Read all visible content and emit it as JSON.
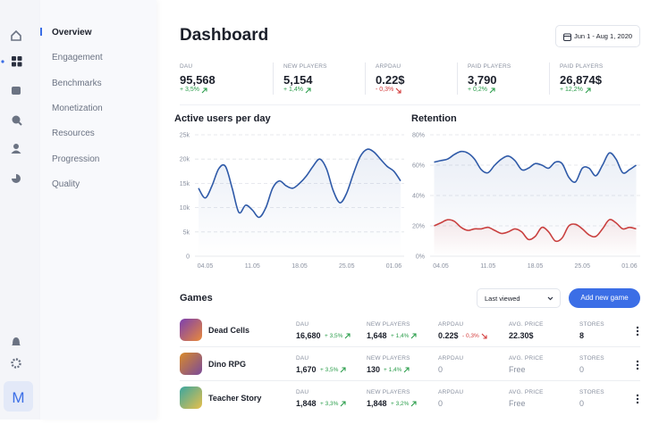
{
  "sidebar": {
    "logo": "M",
    "nav": [
      "Overview",
      "Engagement",
      "Benchmarks",
      "Monetization",
      "Resources",
      "Progression",
      "Quality"
    ]
  },
  "header": {
    "title": "Dashboard",
    "date_range": "Jun 1 - Aug 1, 2020"
  },
  "kpis": [
    {
      "label": "DAU",
      "value": "95,568",
      "change": "+ 3,5%"
    },
    {
      "label": "NEW PLAYERS",
      "value": "5,154",
      "change": "+ 1,4%"
    },
    {
      "label": "ARPDAU",
      "value": "0.22$",
      "change": "- 0,3%"
    },
    {
      "label": "PAID PLAYERS",
      "value": "3,790",
      "change": "+ 0,2%"
    },
    {
      "label": "PAID PLAYERS",
      "value": "26,874$",
      "change": "+ 12,2%"
    }
  ],
  "charts": [
    {
      "type": "line",
      "title": "Active users per day",
      "categories": [
        null,
        "04.05",
        null,
        null,
        null,
        null,
        null,
        null,
        "11.05",
        null,
        null,
        null,
        null,
        null,
        null,
        "18.05",
        null,
        null,
        null,
        null,
        null,
        null,
        "25.05",
        null,
        null,
        null,
        null,
        null,
        null,
        "01.06",
        null
      ],
      "ylim": [
        0,
        25000
      ],
      "yticks": [
        {
          "value": 0,
          "label": "0"
        },
        {
          "value": 5000,
          "label": "5k"
        },
        {
          "value": 10000,
          "label": "10k"
        },
        {
          "value": 15000,
          "label": "15k"
        },
        {
          "value": 20000,
          "label": "20k"
        },
        {
          "value": 25000,
          "label": "25k"
        }
      ],
      "grid": true,
      "series": [
        {
          "color": "#2f5aa8",
          "values": [
            14000,
            12000,
            14500,
            18000,
            18500,
            14000,
            9000,
            10500,
            9500,
            8000,
            10000,
            14000,
            15500,
            14500,
            14000,
            15000,
            16500,
            18500,
            20000,
            18000,
            13500,
            11000,
            13000,
            17000,
            20500,
            22000,
            21500,
            20000,
            18500,
            17500,
            15500
          ]
        }
      ]
    },
    {
      "type": "line",
      "title": "Retention",
      "categories": [
        null,
        "04.05",
        null,
        null,
        null,
        null,
        null,
        null,
        "11.05",
        null,
        null,
        null,
        null,
        null,
        null,
        "18.05",
        null,
        null,
        null,
        null,
        null,
        null,
        "25.05",
        null,
        null,
        null,
        null,
        null,
        null,
        "01.06",
        null
      ],
      "ylim": [
        0,
        80
      ],
      "yticks": [
        {
          "value": 0,
          "label": "0%"
        },
        {
          "value": 20,
          "label": "20%"
        },
        {
          "value": 40,
          "label": "40%"
        },
        {
          "value": 60,
          "label": "60%"
        },
        {
          "value": 80,
          "label": "80%"
        }
      ],
      "grid": true,
      "series": [
        {
          "color": "#2f5aa8",
          "values": [
            62,
            63,
            64,
            67,
            69,
            68,
            64,
            57,
            55,
            60,
            64,
            66,
            63,
            57,
            58,
            61,
            60,
            58,
            62,
            61,
            52,
            49,
            58,
            58,
            53,
            60,
            68,
            64,
            55,
            57,
            60
          ]
        },
        {
          "color": "#c9403f",
          "values": [
            20,
            22,
            24,
            23,
            19,
            17,
            18,
            18,
            19,
            17,
            15,
            16,
            18,
            16,
            11,
            13,
            19,
            16,
            10,
            12,
            20,
            21,
            18,
            14,
            13,
            18,
            24,
            22,
            18,
            19,
            18
          ]
        }
      ]
    }
  ],
  "games": {
    "title": "Games",
    "sort": "Last viewed",
    "add_button": "Add new game",
    "columns": [
      "DAU",
      "NEW PLAYERS",
      "ARPDAU",
      "AVG. PRICE",
      "STORES"
    ],
    "rows": [
      {
        "name": "Dead Cells",
        "cells": [
          {
            "value": "16,680",
            "change": "+ 3,5%"
          },
          {
            "value": "1,648",
            "change": "+ 1,4%"
          },
          {
            "value": "0.22$",
            "change": "- 0,3%"
          },
          {
            "value": "22.30$"
          },
          {
            "value": "8"
          }
        ]
      },
      {
        "name": "Dino RPG",
        "cells": [
          {
            "value": "1,670",
            "change": "+ 3,5%"
          },
          {
            "value": "130",
            "change": "+ 1,4%"
          },
          {
            "value": "0"
          },
          {
            "value": "Free"
          },
          {
            "value": "0"
          }
        ]
      },
      {
        "name": "Teacher Story",
        "cells": [
          {
            "value": "1,848",
            "change": "+ 3,3%"
          },
          {
            "value": "1,848",
            "change": "+ 3,2%"
          },
          {
            "value": "0"
          },
          {
            "value": "Free"
          },
          {
            "value": "0"
          }
        ]
      }
    ]
  }
}
